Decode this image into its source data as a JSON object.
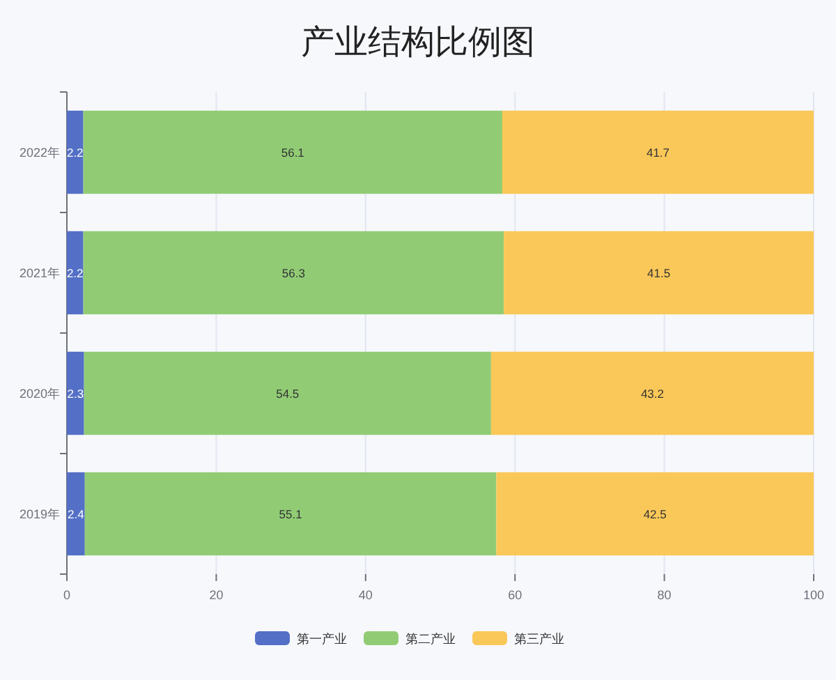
{
  "chart_data": {
    "type": "bar",
    "title": "产业结构比例图",
    "orientation": "horizontal",
    "stacked": true,
    "categories": [
      "2022年",
      "2021年",
      "2020年",
      "2019年"
    ],
    "series": [
      {
        "name": "第一产业",
        "color": "#5470c6",
        "values": [
          2.2,
          2.2,
          2.3,
          2.4
        ]
      },
      {
        "name": "第二产业",
        "color": "#91cc75",
        "values": [
          56.1,
          56.3,
          54.5,
          55.1
        ]
      },
      {
        "name": "第三产业",
        "color": "#fac858",
        "values": [
          41.7,
          41.5,
          43.2,
          42.5
        ]
      }
    ],
    "xlim": [
      0,
      100
    ],
    "xticks": [
      0,
      20,
      40,
      60,
      80,
      100
    ],
    "grid": "x",
    "legend": "bottom",
    "data_labels": true
  }
}
